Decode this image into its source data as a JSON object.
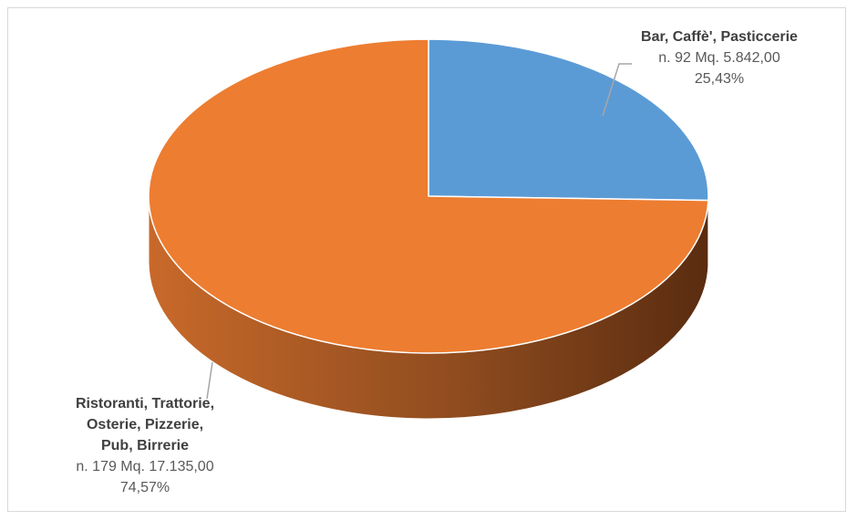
{
  "chart_data": {
    "type": "pie",
    "style": "3d",
    "slices": [
      {
        "name_lines": [
          "Bar, Caffè', Pasticcerie"
        ],
        "detail": "n. 92 Mq. 5.842,00",
        "count": 92,
        "area_mq": 5842.0,
        "percent_label": "25,43%",
        "value": 25.43,
        "color": "#5b9bd5"
      },
      {
        "name_lines": [
          "Ristoranti, Trattorie,",
          "Osterie, Pizzerie,",
          "Pub, Birrerie"
        ],
        "detail": "n. 179 Mq. 17.135,00",
        "count": 179,
        "area_mq": 17135.0,
        "percent_label": "74,57%",
        "value": 74.57,
        "color": "#ed7d31"
      }
    ],
    "legend": "none"
  }
}
